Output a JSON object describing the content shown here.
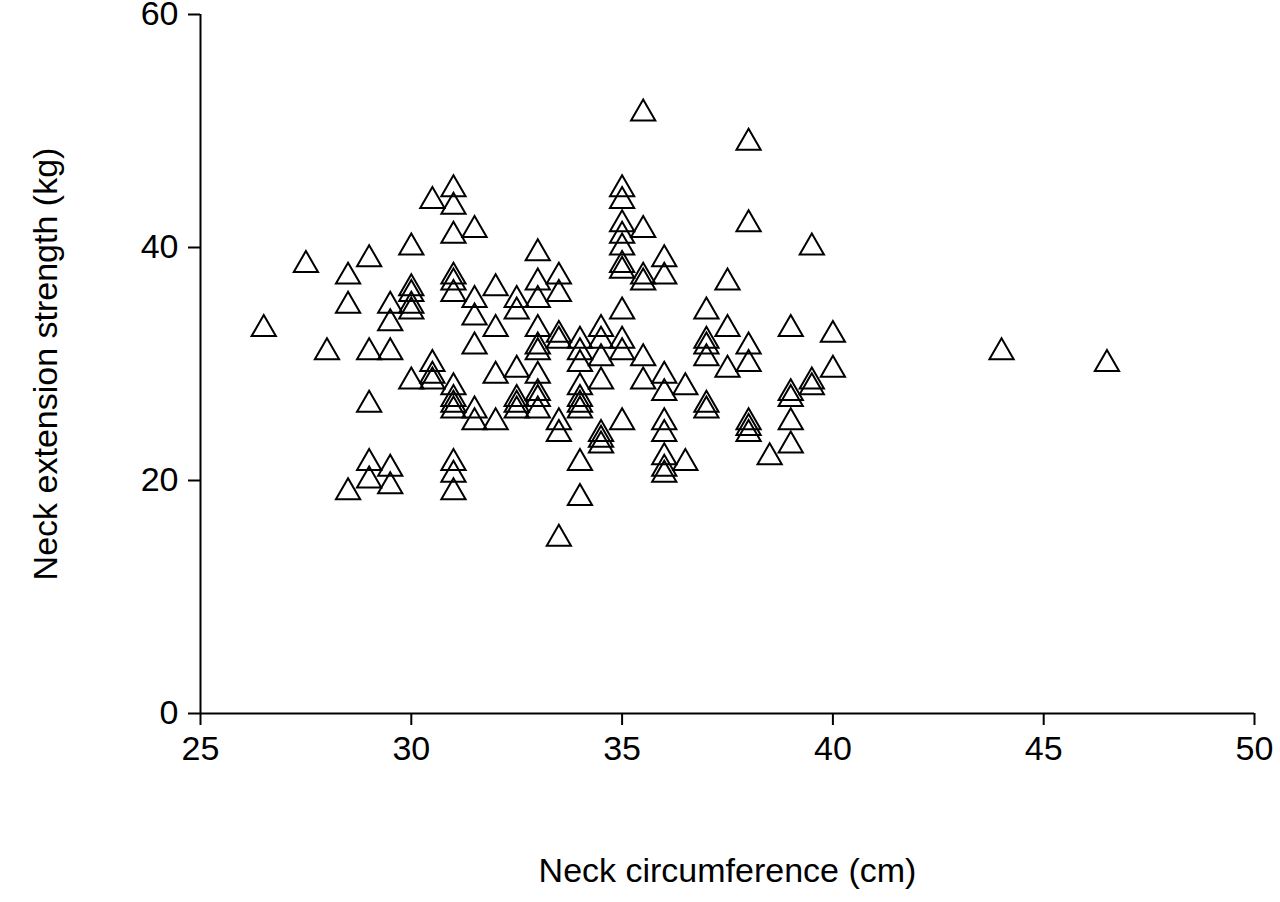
{
  "chart_data": {
    "type": "scatter",
    "x_label": "Neck circumference (cm)",
    "y_label": "Neck extension strength (kg)",
    "xlim": [
      25,
      50
    ],
    "xticks": [
      25,
      30,
      35,
      40,
      45,
      50
    ],
    "ylim": [
      0,
      60
    ],
    "yticks": [
      0,
      20,
      40,
      60
    ],
    "marker": "triangle",
    "color": "#000000",
    "grid": false,
    "x": [
      26.5,
      27.5,
      28,
      28.5,
      28.5,
      28.5,
      29,
      29,
      29,
      29,
      29,
      29.5,
      29.5,
      29.5,
      29.5,
      29.5,
      30,
      30,
      30,
      30,
      30,
      30,
      30.5,
      30.5,
      30.5,
      30.5,
      31,
      31,
      31,
      31,
      31,
      31,
      31,
      31,
      31,
      31,
      31,
      31,
      31,
      31.5,
      31.5,
      31.5,
      31.5,
      31.5,
      31.5,
      32,
      32,
      32,
      32,
      32.5,
      32.5,
      32.5,
      32.5,
      32.5,
      32.5,
      33,
      33,
      33,
      33,
      33,
      33,
      33,
      33,
      33,
      33,
      33.5,
      33.5,
      33.5,
      33.5,
      33.5,
      33.5,
      33.5,
      34,
      34,
      34,
      34,
      34,
      34,
      34,
      34,
      34,
      34.5,
      34.5,
      34.5,
      34.5,
      34.5,
      34.5,
      34.5,
      35,
      35,
      35,
      35,
      35,
      35,
      35,
      35,
      35,
      35,
      35,
      35.5,
      35.5,
      35.5,
      35.5,
      35.5,
      35.5,
      36,
      36,
      36,
      36,
      36,
      36,
      36,
      36,
      36,
      36.5,
      36.5,
      37,
      37,
      37,
      37,
      37,
      37,
      37.5,
      37.5,
      37.5,
      38,
      38,
      38,
      38,
      38,
      38,
      38,
      38.5,
      39,
      39,
      39,
      39,
      39,
      39.5,
      39.5,
      39.5,
      40,
      40,
      44,
      46.5
    ],
    "values": [
      33,
      38.5,
      31,
      37.5,
      35,
      19,
      39,
      31,
      26.5,
      21.5,
      20,
      35,
      33.5,
      31,
      21,
      19.5,
      40,
      36.5,
      36,
      35,
      34.5,
      28.5,
      44,
      30,
      29,
      28.5,
      45,
      43.5,
      41,
      37.5,
      37,
      36,
      28,
      27,
      26.5,
      26,
      21.5,
      20.5,
      19,
      41.5,
      35.5,
      34,
      31.5,
      26,
      25,
      36.5,
      33,
      29,
      25,
      35.5,
      34.5,
      29.5,
      27,
      26.5,
      26,
      39.5,
      37,
      35.5,
      33,
      31.5,
      31,
      29,
      27.5,
      27,
      26,
      37.5,
      36,
      32.5,
      32,
      25,
      24,
      15,
      32,
      31,
      30,
      28,
      27,
      26.5,
      26,
      21.5,
      18.5,
      33,
      32,
      30.5,
      28.5,
      24,
      23.5,
      23,
      45,
      44,
      42,
      41,
      40,
      38.5,
      38,
      34.5,
      32,
      31,
      25,
      51.5,
      41.5,
      37.5,
      37,
      30.5,
      28.5,
      39,
      37.5,
      29,
      27.5,
      25,
      24,
      22,
      21,
      20.5,
      28,
      21.5,
      34.5,
      32,
      31.5,
      30.5,
      26.5,
      26,
      37,
      33,
      29.5,
      49,
      42,
      31.5,
      30,
      25,
      24.5,
      24,
      22,
      33,
      27.5,
      27,
      25,
      23,
      40,
      28.5,
      28,
      32.5,
      29.5,
      31,
      30
    ]
  }
}
